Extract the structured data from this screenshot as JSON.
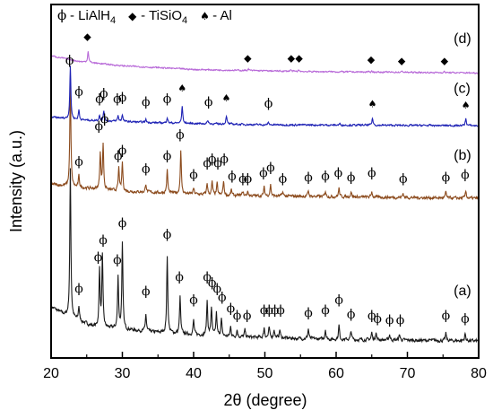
{
  "chart_data": {
    "type": "line",
    "xlabel": "2θ (degree)",
    "ylabel": "Intensity (a.u.)",
    "xlim": [
      20,
      80
    ],
    "xticks": [
      20,
      30,
      40,
      50,
      60,
      70,
      80
    ],
    "grid": false,
    "legend": {
      "placement": "top",
      "entries": [
        {
          "symbol": "phi",
          "marker": "ϕ",
          "label": "LiAlH",
          "sub": "4"
        },
        {
          "symbol": "diamond",
          "marker": "◆",
          "label": "TiSiO",
          "sub": "4"
        },
        {
          "symbol": "spade",
          "marker": "♠",
          "label": "Al",
          "sub": ""
        }
      ]
    },
    "series": [
      {
        "name": "(a)",
        "color": "#1a1a1a",
        "baseline": 4.2,
        "noise": 0.09,
        "drift": [
          [
            20,
            1.2
          ],
          [
            22,
            0.9
          ],
          [
            26,
            0.5
          ],
          [
            35,
            0.3
          ],
          [
            45,
            0.15
          ],
          [
            60,
            0.05
          ],
          [
            80,
            0
          ]
        ],
        "peaks": [
          [
            22.7,
            5.2
          ],
          [
            23.9,
            0.5
          ],
          [
            26.8,
            2.0
          ],
          [
            27.2,
            2.5
          ],
          [
            29.4,
            1.8
          ],
          [
            30.0,
            3.0
          ],
          [
            33.3,
            0.6
          ],
          [
            36.3,
            2.7
          ],
          [
            38.1,
            1.3
          ],
          [
            40.0,
            0.5
          ],
          [
            41.9,
            1.2
          ],
          [
            42.5,
            1.0
          ],
          [
            43.2,
            0.8
          ],
          [
            43.9,
            0.6
          ],
          [
            45.2,
            0.35
          ],
          [
            46.1,
            0.25
          ],
          [
            47.2,
            0.25
          ],
          [
            49.9,
            0.35
          ],
          [
            50.6,
            0.35
          ],
          [
            51.3,
            0.3
          ],
          [
            52.1,
            0.3
          ],
          [
            56.1,
            0.35
          ],
          [
            58.5,
            0.35
          ],
          [
            60.4,
            0.5
          ],
          [
            62.1,
            0.3
          ],
          [
            65.0,
            0.25
          ],
          [
            65.6,
            0.25
          ],
          [
            67.5,
            0.2
          ],
          [
            68.9,
            0.2
          ],
          [
            75.4,
            0.25
          ],
          [
            78.1,
            0.25
          ]
        ],
        "markers": [
          {
            "s": "phi",
            "x": 23.9,
            "y": 5.9
          },
          {
            "s": "phi",
            "x": 26.6,
            "y": 7.0
          },
          {
            "s": "phi",
            "x": 27.3,
            "y": 7.6
          },
          {
            "s": "phi",
            "x": 29.3,
            "y": 6.9
          },
          {
            "s": "phi",
            "x": 30.0,
            "y": 8.2
          },
          {
            "s": "phi",
            "x": 33.3,
            "y": 5.8
          },
          {
            "s": "phi",
            "x": 36.3,
            "y": 7.8
          },
          {
            "s": "phi",
            "x": 38.0,
            "y": 6.3
          },
          {
            "s": "phi",
            "x": 40.0,
            "y": 5.5
          },
          {
            "s": "phi",
            "x": 41.9,
            "y": 6.3
          },
          {
            "s": "phi",
            "x": 42.6,
            "y": 6.1
          },
          {
            "s": "phi",
            "x": 43.3,
            "y": 5.9
          },
          {
            "s": "phi",
            "x": 44.0,
            "y": 5.6
          },
          {
            "s": "phi",
            "x": 45.2,
            "y": 5.2
          },
          {
            "s": "phi",
            "x": 46.1,
            "y": 4.95
          },
          {
            "s": "phi",
            "x": 47.5,
            "y": 4.95
          },
          {
            "s": "phi",
            "x": 49.9,
            "y": 5.15
          },
          {
            "s": "phi",
            "x": 50.6,
            "y": 5.15
          },
          {
            "s": "phi",
            "x": 51.4,
            "y": 5.15
          },
          {
            "s": "phi",
            "x": 52.2,
            "y": 5.15
          },
          {
            "s": "phi",
            "x": 56.1,
            "y": 5.05
          },
          {
            "s": "phi",
            "x": 58.5,
            "y": 5.15
          },
          {
            "s": "phi",
            "x": 60.4,
            "y": 5.5
          },
          {
            "s": "phi",
            "x": 62.1,
            "y": 5.0
          },
          {
            "s": "phi",
            "x": 65.0,
            "y": 4.95
          },
          {
            "s": "phi",
            "x": 65.8,
            "y": 4.85
          },
          {
            "s": "phi",
            "x": 67.5,
            "y": 4.8
          },
          {
            "s": "phi",
            "x": 69.0,
            "y": 4.8
          },
          {
            "s": "phi",
            "x": 75.4,
            "y": 4.95
          },
          {
            "s": "phi",
            "x": 78.1,
            "y": 4.85
          }
        ],
        "label": "(a)",
        "label_x": 76.5,
        "label_y": 5.8
      },
      {
        "name": "(b)",
        "color": "#8b4a1c",
        "baseline": 9.2,
        "noise": 0.08,
        "drift": [
          [
            20,
            0.5
          ],
          [
            23,
            0.4
          ],
          [
            30,
            0.25
          ],
          [
            45,
            0.1
          ],
          [
            80,
            0
          ]
        ],
        "peaks": [
          [
            22.7,
            3.6
          ],
          [
            23.9,
            0.4
          ],
          [
            26.9,
            1.3
          ],
          [
            27.3,
            1.6
          ],
          [
            29.5,
            0.8
          ],
          [
            30.0,
            1.0
          ],
          [
            33.3,
            0.3
          ],
          [
            36.3,
            0.8
          ],
          [
            38.2,
            1.5
          ],
          [
            40.0,
            0.2
          ],
          [
            41.9,
            0.4
          ],
          [
            42.6,
            0.45
          ],
          [
            43.3,
            0.4
          ],
          [
            44.2,
            0.5
          ],
          [
            45.3,
            0.2
          ],
          [
            46.9,
            0.15
          ],
          [
            47.6,
            0.15
          ],
          [
            49.9,
            0.3
          ],
          [
            50.8,
            0.4
          ],
          [
            52.5,
            0.15
          ],
          [
            56.1,
            0.2
          ],
          [
            58.5,
            0.2
          ],
          [
            60.4,
            0.3
          ],
          [
            62.1,
            0.2
          ],
          [
            65.0,
            0.2
          ],
          [
            69.4,
            0.15
          ],
          [
            75.4,
            0.2
          ],
          [
            78.2,
            0.25
          ]
        ],
        "markers": [
          {
            "s": "phi",
            "x": 23.9,
            "y": 10.35
          },
          {
            "s": "phi",
            "x": 26.7,
            "y": 11.6
          },
          {
            "s": "phi",
            "x": 27.5,
            "y": 11.85
          },
          {
            "s": "phi",
            "x": 29.4,
            "y": 10.55
          },
          {
            "s": "phi",
            "x": 30.0,
            "y": 10.75
          },
          {
            "s": "phi",
            "x": 33.3,
            "y": 10.1
          },
          {
            "s": "phi",
            "x": 36.3,
            "y": 10.55
          },
          {
            "s": "phi",
            "x": 38.1,
            "y": 11.3
          },
          {
            "s": "phi",
            "x": 40.0,
            "y": 9.9
          },
          {
            "s": "phi",
            "x": 41.9,
            "y": 10.3
          },
          {
            "s": "phi",
            "x": 42.6,
            "y": 10.45
          },
          {
            "s": "phi",
            "x": 43.4,
            "y": 10.3
          },
          {
            "s": "phi",
            "x": 44.3,
            "y": 10.45
          },
          {
            "s": "phi",
            "x": 45.4,
            "y": 9.85
          },
          {
            "s": "phi",
            "x": 46.9,
            "y": 9.75
          },
          {
            "s": "phi",
            "x": 47.6,
            "y": 9.75
          },
          {
            "s": "phi",
            "x": 49.8,
            "y": 9.95
          },
          {
            "s": "phi",
            "x": 50.8,
            "y": 10.15
          },
          {
            "s": "phi",
            "x": 52.5,
            "y": 9.75
          },
          {
            "s": "phi",
            "x": 56.1,
            "y": 9.8
          },
          {
            "s": "phi",
            "x": 58.5,
            "y": 9.85
          },
          {
            "s": "phi",
            "x": 60.3,
            "y": 9.95
          },
          {
            "s": "phi",
            "x": 62.1,
            "y": 9.8
          },
          {
            "s": "phi",
            "x": 65.0,
            "y": 9.95
          },
          {
            "s": "phi",
            "x": 69.4,
            "y": 9.75
          },
          {
            "s": "phi",
            "x": 75.4,
            "y": 9.8
          },
          {
            "s": "phi",
            "x": 78.1,
            "y": 9.9
          }
        ],
        "label": "(b)",
        "label_x": 76.5,
        "label_y": 10.55
      },
      {
        "name": "(c)",
        "color": "#1f23b5",
        "baseline": 11.75,
        "noise": 0.05,
        "drift": [
          [
            20,
            0.3
          ],
          [
            24,
            0.2
          ],
          [
            35,
            0.1
          ],
          [
            50,
            0.03
          ],
          [
            80,
            0
          ]
        ],
        "peaks": [
          [
            22.7,
            1.85
          ],
          [
            23.9,
            0.35
          ],
          [
            26.8,
            0.2
          ],
          [
            27.4,
            0.35
          ],
          [
            29.4,
            0.2
          ],
          [
            30.0,
            0.25
          ],
          [
            33.3,
            0.1
          ],
          [
            36.3,
            0.2
          ],
          [
            38.4,
            0.6
          ],
          [
            42.0,
            0.12
          ],
          [
            44.6,
            0.3
          ],
          [
            50.5,
            0.08
          ],
          [
            60.5,
            0.05
          ],
          [
            65.1,
            0.25
          ],
          [
            78.2,
            0.25
          ]
        ],
        "markers": [
          {
            "s": "phi",
            "x": 22.6,
            "y": 13.9
          },
          {
            "s": "phi",
            "x": 23.9,
            "y": 12.8
          },
          {
            "s": "phi",
            "x": 26.8,
            "y": 12.55
          },
          {
            "s": "phi",
            "x": 27.4,
            "y": 12.75
          },
          {
            "s": "phi",
            "x": 29.3,
            "y": 12.55
          },
          {
            "s": "phi",
            "x": 30.0,
            "y": 12.6
          },
          {
            "s": "phi",
            "x": 33.3,
            "y": 12.45
          },
          {
            "s": "phi",
            "x": 36.3,
            "y": 12.55
          },
          {
            "s": "spade",
            "x": 38.4,
            "y": 12.95
          },
          {
            "s": "phi",
            "x": 42.1,
            "y": 12.45
          },
          {
            "s": "spade",
            "x": 44.6,
            "y": 12.6
          },
          {
            "s": "phi",
            "x": 50.5,
            "y": 12.4
          },
          {
            "s": "spade",
            "x": 65.1,
            "y": 12.4
          },
          {
            "s": "spade",
            "x": 78.2,
            "y": 12.35
          }
        ],
        "label": "(c)",
        "label_x": 76.5,
        "label_y": 12.9
      },
      {
        "name": "(d)",
        "color": "#b86ad8",
        "baseline": 13.6,
        "noise": 0.04,
        "drift": [
          [
            20,
            0.6
          ],
          [
            24,
            0.4
          ],
          [
            30,
            0.25
          ],
          [
            40,
            0.12
          ],
          [
            55,
            0.05
          ],
          [
            80,
            0
          ]
        ],
        "peaks": [
          [
            25.2,
            0.4
          ],
          [
            47.7,
            0.06
          ],
          [
            53.6,
            0.06
          ],
          [
            54.8,
            0.05
          ],
          [
            65.0,
            0.04
          ],
          [
            69.3,
            0.04
          ],
          [
            75.2,
            0.04
          ]
        ],
        "markers": [
          {
            "s": "diamond",
            "x": 25.1,
            "y": 14.75
          },
          {
            "s": "diamond",
            "x": 47.6,
            "y": 14.0
          },
          {
            "s": "diamond",
            "x": 53.7,
            "y": 14.0
          },
          {
            "s": "diamond",
            "x": 54.8,
            "y": 14.0
          },
          {
            "s": "diamond",
            "x": 64.9,
            "y": 13.95
          },
          {
            "s": "diamond",
            "x": 69.2,
            "y": 13.9
          },
          {
            "s": "diamond",
            "x": 75.2,
            "y": 13.9
          }
        ],
        "label": "(d)",
        "label_x": 76.5,
        "label_y": 14.65
      }
    ]
  }
}
